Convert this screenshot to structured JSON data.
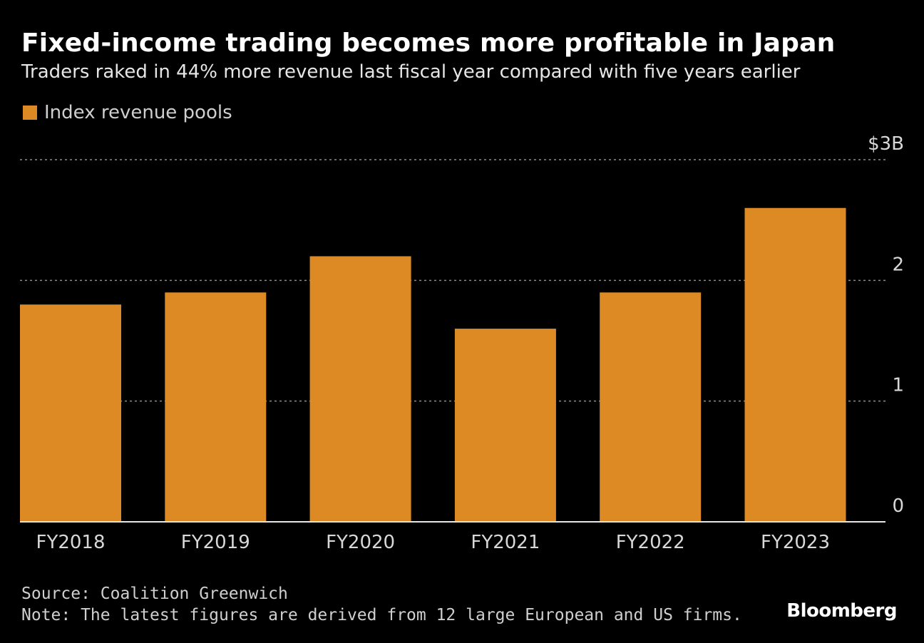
{
  "header": {
    "title": "Fixed-income trading becomes more profitable in Japan",
    "subtitle": "Traders raked in 44% more revenue last fiscal year compared with five years earlier"
  },
  "legend": {
    "label": "Index revenue pools",
    "color": "#dd8a24"
  },
  "chart_data": {
    "type": "bar",
    "title": "Fixed-income trading becomes more profitable in Japan",
    "subtitle": "Traders raked in 44% more revenue last fiscal year compared with five years earlier",
    "xlabel": "",
    "ylabel": "",
    "categories": [
      "FY2018",
      "FY2019",
      "FY2020",
      "FY2021",
      "FY2022",
      "FY2023"
    ],
    "series": [
      {
        "name": "Index revenue pools",
        "values": [
          1.8,
          1.9,
          2.2,
          1.6,
          1.9,
          2.6
        ],
        "color": "#dd8a24"
      }
    ],
    "ylim": [
      0,
      3
    ],
    "yticks": [
      {
        "value": 0,
        "label": "0"
      },
      {
        "value": 1,
        "label": "1"
      },
      {
        "value": 2,
        "label": "2"
      },
      {
        "value": 3,
        "label": "$3B"
      }
    ],
    "grid": true,
    "legend_position": "top-left",
    "y_axis_position": "right"
  },
  "footer": {
    "source": "Source: Coalition Greenwich",
    "note": "Note: The latest figures are derived from 12 large European and US firms."
  },
  "brand": {
    "logo_text": "Bloomberg"
  }
}
